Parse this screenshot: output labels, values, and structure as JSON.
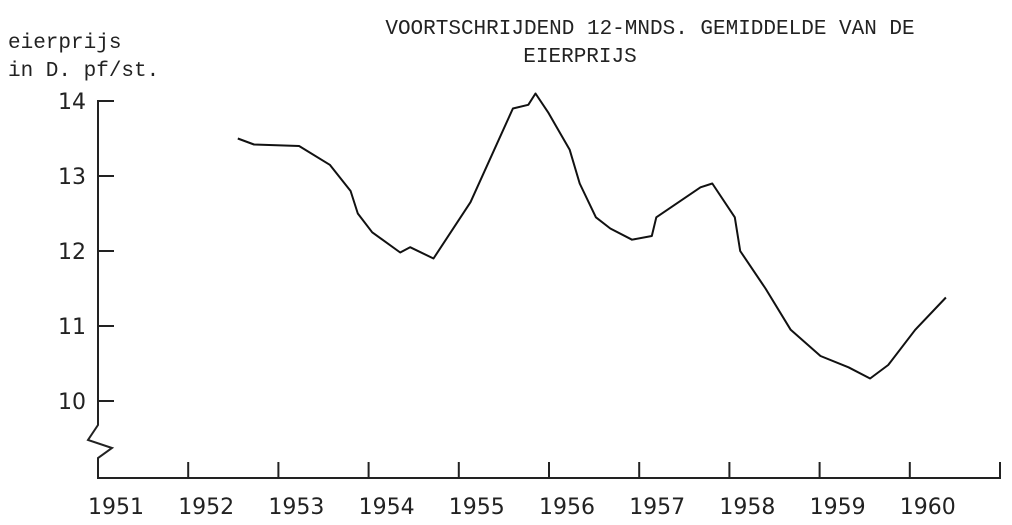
{
  "chart_data": {
    "type": "line",
    "title": [
      "VOORTSCHRIJDEND 12-MNDS. GEMIDDELDE VAN DE",
      "EIERPRIJS"
    ],
    "ylabel": [
      "eierprijs",
      "in D. pf/st."
    ],
    "xlim": [
      1951,
      1961
    ],
    "xticks": [
      1951,
      1952,
      1953,
      1954,
      1955,
      1956,
      1957,
      1958,
      1959,
      1960
    ],
    "ylim": [
      9,
      14
    ],
    "yticks": [
      10,
      11,
      12,
      13,
      14
    ],
    "color": "#111111",
    "x": [
      1952.55,
      1952.73,
      1953.23,
      1953.57,
      1953.8,
      1953.88,
      1954.04,
      1954.35,
      1954.46,
      1954.72,
      1955.13,
      1955.6,
      1955.77,
      1955.85,
      1955.99,
      1956.23,
      1956.34,
      1956.52,
      1956.68,
      1956.92,
      1957.14,
      1957.19,
      1957.68,
      1957.81,
      1958.06,
      1958.12,
      1958.4,
      1958.68,
      1959.01,
      1959.32,
      1959.56,
      1959.76,
      1960.06,
      1960.4
    ],
    "values": [
      13.5,
      13.42,
      13.4,
      13.15,
      12.8,
      12.5,
      12.25,
      11.98,
      12.05,
      11.9,
      12.65,
      13.9,
      13.95,
      14.1,
      13.85,
      13.35,
      12.9,
      12.45,
      12.3,
      12.15,
      12.2,
      12.45,
      12.85,
      12.9,
      12.45,
      12.0,
      11.5,
      10.95,
      10.6,
      10.45,
      10.3,
      10.48,
      10.95,
      11.38
    ]
  }
}
